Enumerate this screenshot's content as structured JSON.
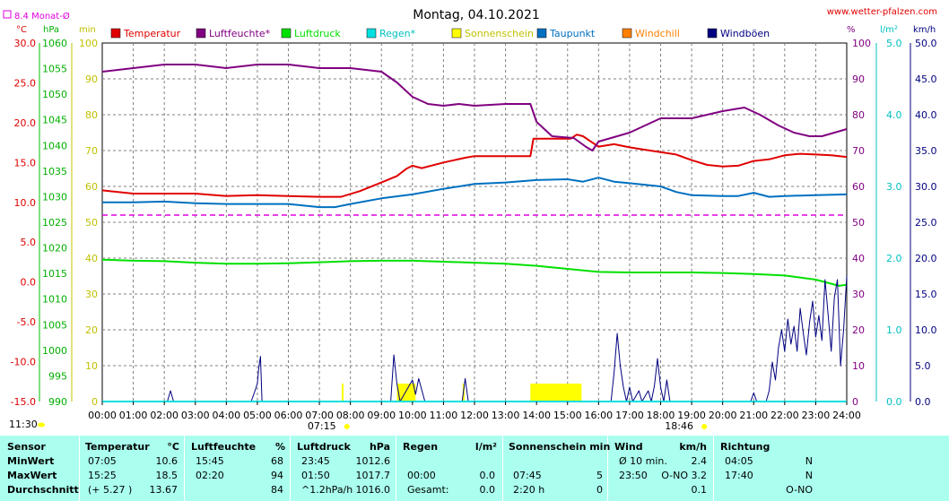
{
  "header": {
    "title": "Montag, 04.10.2021",
    "site": "www.wetter-pfalzen.com",
    "monthly_avg": "8.4 Monat-Ø"
  },
  "units": {
    "celsius": "°C",
    "hpa": "hPa",
    "min": "min",
    "percent": "%",
    "lm2": "l/m²",
    "kmh": "km/h"
  },
  "colors": {
    "temperature": "#e00000",
    "humidity": "#800080",
    "pressure": "#00e000",
    "rain": "#00e0e0",
    "sunshine": "#ffff00",
    "dewpoint": "#0070c0",
    "windchill": "#ff8000",
    "gusts": "#000080",
    "monthly_avg": "#e000e0",
    "grid": "#808080",
    "stats_bg": "#aaffee"
  },
  "chart_data": {
    "type": "line",
    "title": "Montag, 04.10.2021",
    "x_ticks": [
      "00:00",
      "01:00",
      "02:00",
      "03:00",
      "04:00",
      "05:00",
      "06:00",
      "07:00",
      "08:00",
      "09:00",
      "10:00",
      "11:00",
      "12:00",
      "13:00",
      "14:00",
      "15:00",
      "16:00",
      "17:00",
      "18:00",
      "19:00",
      "20:00",
      "21:00",
      "22:00",
      "23:00",
      "24:00"
    ],
    "xlim": [
      0,
      24
    ],
    "axes": {
      "celsius": {
        "label": "°C",
        "ylim": [
          -15,
          30
        ],
        "ticks": [
          "30.0",
          "25.0",
          "20.0",
          "15.0",
          "10.0",
          "5.0",
          "0.0",
          "-5.0",
          "-10.0",
          "-15.0"
        ]
      },
      "hpa": {
        "label": "hPa",
        "ylim": [
          990,
          1060
        ],
        "ticks": [
          "1060",
          "1055",
          "1050",
          "1045",
          "1040",
          "1035",
          "1030",
          "1025",
          "1020",
          "1015",
          "1010",
          "1005",
          "1000",
          "995",
          "990"
        ]
      },
      "min": {
        "label": "min",
        "ylim": [
          0,
          100
        ],
        "ticks": [
          "100",
          "90",
          "80",
          "70",
          "60",
          "50",
          "40",
          "30",
          "20",
          "10",
          "0"
        ]
      },
      "percent": {
        "label": "%",
        "ylim": [
          0,
          100
        ],
        "ticks": [
          "100",
          "90",
          "80",
          "70",
          "60",
          "50",
          "40",
          "30",
          "20",
          "10",
          "0"
        ]
      },
      "lm2": {
        "label": "l/m²",
        "ylim": [
          0,
          5
        ],
        "ticks": [
          "5.0",
          "4.0",
          "3.0",
          "2.0",
          "1.0",
          "0.0"
        ]
      },
      "kmh": {
        "label": "km/h",
        "ylim": [
          0,
          50
        ],
        "ticks": [
          "50.0",
          "45.0",
          "40.0",
          "35.0",
          "30.0",
          "25.0",
          "20.0",
          "15.0",
          "10.0",
          "5.0",
          "0.0"
        ]
      }
    },
    "legend": [
      "Temperatur",
      "Luftfeuchte*",
      "Luftdruck",
      "Regen*",
      "Sonnenschein",
      "Taupunkt",
      "Windchill",
      "Windböen"
    ],
    "legend_position": "top",
    "grid": true,
    "monthly_avg_celsius": 8.4,
    "series": [
      {
        "name": "Temperatur",
        "axis": "celsius",
        "points": [
          [
            0,
            11.5
          ],
          [
            1,
            11.1
          ],
          [
            2,
            11.1
          ],
          [
            3,
            11.1
          ],
          [
            4,
            10.8
          ],
          [
            5,
            10.9
          ],
          [
            6,
            10.8
          ],
          [
            7,
            10.7
          ],
          [
            7.7,
            10.7
          ],
          [
            8.3,
            11.4
          ],
          [
            9,
            12.5
          ],
          [
            9.5,
            13.3
          ],
          [
            9.8,
            14.2
          ],
          [
            10,
            14.6
          ],
          [
            10.3,
            14.3
          ],
          [
            11,
            15.0
          ],
          [
            11.7,
            15.6
          ],
          [
            12,
            15.8
          ],
          [
            13,
            15.8
          ],
          [
            13.8,
            15.8
          ],
          [
            13.9,
            18.0
          ],
          [
            14.5,
            18.0
          ],
          [
            15.1,
            18.0
          ],
          [
            15.3,
            18.5
          ],
          [
            15.5,
            18.3
          ],
          [
            15.8,
            17.5
          ],
          [
            16,
            17.0
          ],
          [
            16.5,
            17.3
          ],
          [
            17,
            16.9
          ],
          [
            17.5,
            16.6
          ],
          [
            18,
            16.3
          ],
          [
            18.5,
            16.0
          ],
          [
            19,
            15.3
          ],
          [
            19.5,
            14.7
          ],
          [
            20,
            14.5
          ],
          [
            20.5,
            14.6
          ],
          [
            21,
            15.2
          ],
          [
            21.5,
            15.4
          ],
          [
            22,
            15.9
          ],
          [
            22.5,
            16.1
          ],
          [
            23,
            16.0
          ],
          [
            23.5,
            15.9
          ],
          [
            24,
            15.7
          ]
        ]
      },
      {
        "name": "Luftfeuchte*",
        "axis": "percent",
        "points": [
          [
            0,
            92
          ],
          [
            1,
            93
          ],
          [
            2,
            94
          ],
          [
            3,
            94
          ],
          [
            4,
            93
          ],
          [
            5,
            94
          ],
          [
            6,
            94
          ],
          [
            7,
            93
          ],
          [
            8,
            93
          ],
          [
            9,
            92
          ],
          [
            9.5,
            89
          ],
          [
            10,
            85
          ],
          [
            10.5,
            83
          ],
          [
            11,
            82.5
          ],
          [
            11.5,
            83
          ],
          [
            12,
            82.5
          ],
          [
            13,
            83
          ],
          [
            13.8,
            83
          ],
          [
            14,
            78
          ],
          [
            14.5,
            74
          ],
          [
            15.2,
            73.5
          ],
          [
            15.6,
            71
          ],
          [
            15.8,
            70
          ],
          [
            16,
            72.5
          ],
          [
            17,
            75
          ],
          [
            18,
            79
          ],
          [
            19,
            79
          ],
          [
            20,
            81
          ],
          [
            20.7,
            82
          ],
          [
            21.2,
            80
          ],
          [
            21.8,
            77
          ],
          [
            22.3,
            75
          ],
          [
            22.8,
            74
          ],
          [
            23.2,
            74
          ],
          [
            23.6,
            75
          ],
          [
            24,
            76
          ]
        ]
      },
      {
        "name": "Luftdruck",
        "axis": "hpa",
        "points": [
          [
            0,
            1017.7
          ],
          [
            1,
            1017.5
          ],
          [
            2,
            1017.4
          ],
          [
            3,
            1017.1
          ],
          [
            4,
            1016.9
          ],
          [
            5,
            1016.9
          ],
          [
            6,
            1017.0
          ],
          [
            7,
            1017.2
          ],
          [
            8,
            1017.4
          ],
          [
            9,
            1017.5
          ],
          [
            10,
            1017.5
          ],
          [
            11,
            1017.3
          ],
          [
            12,
            1017.1
          ],
          [
            13,
            1016.9
          ],
          [
            14,
            1016.5
          ],
          [
            15,
            1015.9
          ],
          [
            16,
            1015.3
          ],
          [
            17,
            1015.2
          ],
          [
            18,
            1015.2
          ],
          [
            19,
            1015.2
          ],
          [
            20,
            1015.1
          ],
          [
            21,
            1014.9
          ],
          [
            22,
            1014.6
          ],
          [
            23,
            1013.8
          ],
          [
            23.75,
            1012.6
          ],
          [
            24,
            1012.8
          ]
        ]
      },
      {
        "name": "Taupunkt",
        "axis": "celsius",
        "points": [
          [
            0,
            10.0
          ],
          [
            1,
            10.0
          ],
          [
            2,
            10.1
          ],
          [
            3,
            9.9
          ],
          [
            4,
            9.8
          ],
          [
            5,
            9.8
          ],
          [
            6,
            9.8
          ],
          [
            7,
            9.4
          ],
          [
            7.5,
            9.4
          ],
          [
            8,
            9.8
          ],
          [
            9,
            10.5
          ],
          [
            10,
            11.0
          ],
          [
            11,
            11.7
          ],
          [
            12,
            12.3
          ],
          [
            13,
            12.5
          ],
          [
            14,
            12.8
          ],
          [
            15,
            12.9
          ],
          [
            15.5,
            12.6
          ],
          [
            16,
            13.1
          ],
          [
            16.5,
            12.6
          ],
          [
            17,
            12.4
          ],
          [
            18,
            12.0
          ],
          [
            18.5,
            11.3
          ],
          [
            19,
            10.9
          ],
          [
            20,
            10.8
          ],
          [
            20.5,
            10.8
          ],
          [
            21,
            11.2
          ],
          [
            21.5,
            10.7
          ],
          [
            22,
            10.8
          ],
          [
            23,
            10.9
          ],
          [
            24,
            11.0
          ]
        ]
      },
      {
        "name": "Windböen",
        "axis": "kmh",
        "points": [
          [
            0,
            0
          ],
          [
            2.1,
            0
          ],
          [
            2.2,
            1.5
          ],
          [
            2.3,
            0
          ],
          [
            4.8,
            0
          ],
          [
            4.9,
            1.2
          ],
          [
            5.0,
            2.5
          ],
          [
            5.05,
            4.8
          ],
          [
            5.1,
            6.3
          ],
          [
            5.15,
            0
          ],
          [
            9.3,
            0
          ],
          [
            9.4,
            6.5
          ],
          [
            9.5,
            2.5
          ],
          [
            9.6,
            0
          ],
          [
            9.8,
            1.5
          ],
          [
            10.0,
            3.0
          ],
          [
            10.1,
            1.0
          ],
          [
            10.2,
            3.2
          ],
          [
            10.4,
            0
          ],
          [
            11.6,
            0
          ],
          [
            11.7,
            3.2
          ],
          [
            11.8,
            0
          ],
          [
            16.4,
            0
          ],
          [
            16.5,
            4.0
          ],
          [
            16.6,
            9.5
          ],
          [
            16.7,
            5.0
          ],
          [
            16.8,
            2.0
          ],
          [
            16.9,
            0
          ],
          [
            17.0,
            2.0
          ],
          [
            17.1,
            0
          ],
          [
            17.3,
            1.5
          ],
          [
            17.4,
            0
          ],
          [
            17.6,
            1.5
          ],
          [
            17.7,
            0
          ],
          [
            17.8,
            2.2
          ],
          [
            17.9,
            6.0
          ],
          [
            18.0,
            2.0
          ],
          [
            18.1,
            0
          ],
          [
            18.2,
            3.0
          ],
          [
            18.3,
            0
          ],
          [
            20.9,
            0
          ],
          [
            21.0,
            1.2
          ],
          [
            21.1,
            0
          ],
          [
            21.4,
            0
          ],
          [
            21.5,
            1.5
          ],
          [
            21.6,
            5.5
          ],
          [
            21.7,
            3.0
          ],
          [
            21.8,
            7.5
          ],
          [
            21.9,
            10.0
          ],
          [
            22.0,
            7.0
          ],
          [
            22.1,
            11.5
          ],
          [
            22.2,
            8.0
          ],
          [
            22.3,
            10.5
          ],
          [
            22.4,
            7.0
          ],
          [
            22.5,
            13.0
          ],
          [
            22.6,
            9.5
          ],
          [
            22.7,
            6.5
          ],
          [
            22.8,
            11.0
          ],
          [
            22.9,
            14.0
          ],
          [
            23.0,
            9.0
          ],
          [
            23.1,
            12.0
          ],
          [
            23.2,
            8.5
          ],
          [
            23.3,
            17.0
          ],
          [
            23.4,
            12.0
          ],
          [
            23.5,
            7.0
          ],
          [
            23.6,
            14.5
          ],
          [
            23.7,
            17.0
          ],
          [
            23.8,
            5.0
          ],
          [
            23.9,
            10.0
          ],
          [
            24.0,
            17.5
          ]
        ]
      },
      {
        "name": "Regen*",
        "axis": "lm2",
        "points": [
          [
            0,
            0
          ],
          [
            24,
            0
          ]
        ]
      }
    ],
    "sunshine_blocks": [
      [
        7.72,
        7.78
      ],
      [
        9.5,
        10.1
      ],
      [
        11.62,
        11.68
      ],
      [
        13.8,
        15.45
      ]
    ],
    "markers": [
      {
        "label": "07:15",
        "x": 7.25
      },
      {
        "label": "18:46",
        "x": 18.77
      }
    ],
    "left_corner_time": "11:30"
  },
  "stats": {
    "headers": {
      "sensor": "Sensor",
      "temp": "Temperatur",
      "temp_unit": "°C",
      "hum": "Luftfeuchte",
      "hum_unit": "%",
      "press": "Luftdruck",
      "press_unit": "hPa",
      "rain": "Regen",
      "rain_unit": "l/m²",
      "sun": "Sonnenschein min",
      "wind": "Wind",
      "wind_unit": "km/h",
      "dir": "Richtung"
    },
    "rows": [
      {
        "label": "MinWert",
        "temp_time": "07:05",
        "temp_val": "10.6",
        "hum_time": "15:45",
        "hum_val": "68",
        "press_time": "23:45",
        "press_val": "1012.6",
        "rain_time": "",
        "rain_val": "",
        "sun_time": "",
        "sun_val": "",
        "wind_time": "Ø 10 min.",
        "wind_val": "2.4",
        "dir_time": "04:05",
        "dir_val": "N"
      },
      {
        "label": "MaxWert",
        "temp_time": "15:25",
        "temp_val": "18.5",
        "hum_time": "02:20",
        "hum_val": "94",
        "press_time": "01:50",
        "press_val": "1017.7",
        "rain_time": "00:00",
        "rain_val": "0.0",
        "sun_time": "07:45",
        "sun_val": "5",
        "wind_time": "23:50",
        "wind_val": "O-NO 3.2",
        "dir_time": "17:40",
        "dir_val": "N"
      },
      {
        "label": "Durchschnitt",
        "temp_time": "(+ 5.27 )",
        "temp_val": "13.67",
        "hum_time": "",
        "hum_val": "84",
        "press_time": "^1.2hPa/h",
        "press_val": "1016.0",
        "rain_time": "Gesamt:",
        "rain_val": "0.0",
        "sun_time": "2:20 h",
        "sun_val": "0",
        "wind_time": "",
        "wind_val": "0.1",
        "dir_time": "",
        "dir_val": "O-NO"
      }
    ]
  }
}
